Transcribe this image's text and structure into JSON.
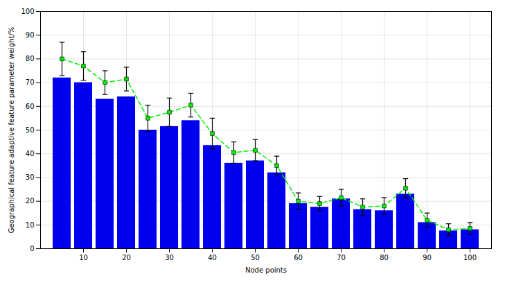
{
  "chart_data": {
    "type": "bar",
    "xlabel": "Node points",
    "ylabel": "Geographical feature adaptive feature parameter weight/%",
    "x": [
      5,
      10,
      15,
      20,
      25,
      30,
      35,
      40,
      45,
      50,
      55,
      60,
      65,
      70,
      75,
      80,
      85,
      90,
      95,
      100
    ],
    "series": [
      {
        "type": "bar",
        "color": "#0000ee",
        "values": [
          72,
          70,
          63,
          64,
          50,
          51.5,
          54,
          43.5,
          36,
          37,
          32,
          19,
          17.5,
          21,
          16.5,
          16,
          23,
          11,
          7.5,
          8
        ]
      },
      {
        "type": "line",
        "color": "#00ee00",
        "line_style": "dashed",
        "marker": "square",
        "values": [
          80,
          77,
          70,
          71.5,
          55,
          57.5,
          60.5,
          48.5,
          40.5,
          41.5,
          35,
          20,
          19,
          21.5,
          17.5,
          18,
          25.5,
          12,
          8,
          8.5
        ],
        "error_bars": [
          7,
          6,
          5,
          5,
          5.5,
          6,
          5,
          6.5,
          4.5,
          4.5,
          4,
          3.5,
          3,
          3.5,
          3.5,
          3.5,
          4,
          3,
          2.5,
          2.5
        ]
      }
    ],
    "xlim": [
      0,
      105
    ],
    "ylim": [
      0,
      100
    ],
    "xticks": [
      10,
      20,
      30,
      40,
      50,
      60,
      70,
      80,
      90,
      100
    ],
    "yticks": [
      0,
      10,
      20,
      30,
      40,
      50,
      60,
      70,
      80,
      90,
      100
    ],
    "grid": true
  }
}
